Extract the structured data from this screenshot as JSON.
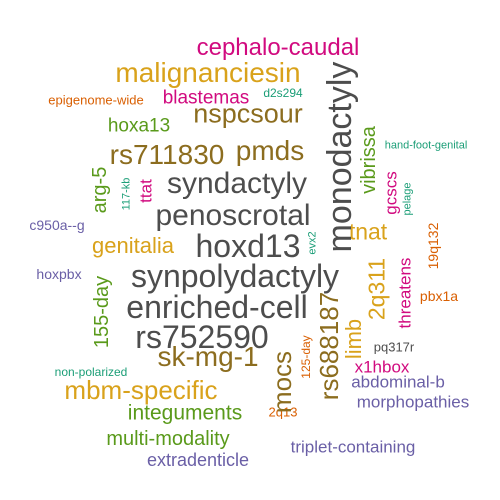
{
  "palette": {
    "gray": "#4d4d4d",
    "brown": "#8c6d1f",
    "gold": "#d9a21b",
    "green": "#5a9a1b",
    "magenta": "#d10a7f",
    "orange": "#d95f02",
    "teal": "#1b9e77",
    "purple": "#6a5fa6"
  },
  "words": [
    {
      "text": "cephalo-caudal",
      "color": "magenta"
    },
    {
      "text": "malignanciesin",
      "color": "gold"
    },
    {
      "text": "epigenome-wide",
      "color": "orange"
    },
    {
      "text": "blastemas",
      "color": "magenta"
    },
    {
      "text": "d2s294",
      "color": "teal"
    },
    {
      "text": "nspcsour",
      "color": "brown"
    },
    {
      "text": "hoxa13",
      "color": "green"
    },
    {
      "text": "rs711830",
      "color": "brown"
    },
    {
      "text": "pmds",
      "color": "brown"
    },
    {
      "text": "syndactyly",
      "color": "gray"
    },
    {
      "text": "penoscrotal",
      "color": "gray"
    },
    {
      "text": "hoxd13",
      "color": "gray"
    },
    {
      "text": "synpolydactyly",
      "color": "gray"
    },
    {
      "text": "enriched-cell",
      "color": "gray"
    },
    {
      "text": "rs752590",
      "color": "gray"
    },
    {
      "text": "sk-mg-1",
      "color": "brown"
    },
    {
      "text": "mbm-specific",
      "color": "gold"
    },
    {
      "text": "integuments",
      "color": "green"
    },
    {
      "text": "multi-modality",
      "color": "green"
    },
    {
      "text": "extradenticle",
      "color": "purple"
    },
    {
      "text": "triplet-containing",
      "color": "purple"
    },
    {
      "text": "morphopathies",
      "color": "purple"
    },
    {
      "text": "abdominal-b",
      "color": "purple"
    },
    {
      "text": "x1hbox",
      "color": "magenta"
    },
    {
      "text": "pq317r",
      "color": "gray"
    },
    {
      "text": "pbx1a",
      "color": "orange"
    },
    {
      "text": "hand-foot-genital",
      "color": "teal"
    },
    {
      "text": "genitalia",
      "color": "gold"
    },
    {
      "text": "tnat",
      "color": "gold"
    },
    {
      "text": "c950a--g",
      "color": "purple"
    },
    {
      "text": "hoxpbx",
      "color": "purple"
    },
    {
      "text": "non-polarized",
      "color": "teal"
    },
    {
      "text": "2q13",
      "color": "orange"
    },
    {
      "text": "monodactyly",
      "color": "gray"
    },
    {
      "text": "vibrissa",
      "color": "green"
    },
    {
      "text": "gcscs",
      "color": "magenta"
    },
    {
      "text": "pelage",
      "color": "teal"
    },
    {
      "text": "arg-5",
      "color": "green"
    },
    {
      "text": "117-kb",
      "color": "teal"
    },
    {
      "text": "ttat",
      "color": "magenta"
    },
    {
      "text": "evx2",
      "color": "teal"
    },
    {
      "text": "2q311",
      "color": "gold"
    },
    {
      "text": "19q132",
      "color": "orange"
    },
    {
      "text": "threatens",
      "color": "magenta"
    },
    {
      "text": "155-day",
      "color": "green"
    },
    {
      "text": "rs688187",
      "color": "brown"
    },
    {
      "text": "mocs",
      "color": "brown"
    },
    {
      "text": "limb",
      "color": "gold"
    },
    {
      "text": "125-day",
      "color": "orange"
    }
  ]
}
